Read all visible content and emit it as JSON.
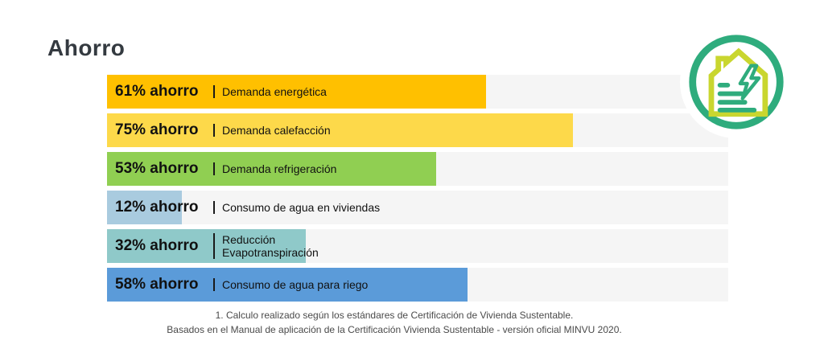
{
  "title": "Ahorro",
  "chart_data": {
    "type": "bar",
    "orientation": "horizontal",
    "title": "Ahorro",
    "unit": "%",
    "xlim": [
      0,
      100
    ],
    "track_color": "#F5F5F5",
    "categories": [
      "Demanda energética",
      "Demanda calefacción",
      "Demanda refrigeración",
      "Consumo de agua en viviendas",
      "Reducción Evapotranspiración",
      "Consumo de agua para riego"
    ],
    "values": [
      61,
      75,
      53,
      12,
      32,
      58
    ],
    "bars": [
      {
        "pct": 61,
        "value_label": "61% ahorro",
        "label": "Demanda energética",
        "color": "#FFC000"
      },
      {
        "pct": 75,
        "value_label": "75% ahorro",
        "label": "Demanda calefacción",
        "color": "#FDD94A"
      },
      {
        "pct": 53,
        "value_label": "53% ahorro",
        "label": "Demanda refrigeración",
        "color": "#90CF52"
      },
      {
        "pct": 12,
        "value_label": "12% ahorro",
        "label": "Consumo de agua en viviendas",
        "color": "#A9CBDF"
      },
      {
        "pct": 32,
        "value_label": "32% ahorro",
        "label": "Reducción\nEvapotranspiración",
        "color": "#8FC9C9"
      },
      {
        "pct": 58,
        "value_label": "58% ahorro",
        "label": "Consumo de agua para riego",
        "color": "#5B9BD9"
      }
    ]
  },
  "icon": {
    "name": "sustainable-house-energy",
    "ring_color": "#2FAC7D",
    "house_color": "#C9D62F",
    "accent_color": "#2FAC7D"
  },
  "footer": {
    "line1": "1. Calculo realizado según los estándares de Certificación de Vivienda Sustentable.",
    "line2": "Basados en el Manual de aplicación de la Certificación Vivienda Sustentable - versión oficial MINVU 2020."
  }
}
